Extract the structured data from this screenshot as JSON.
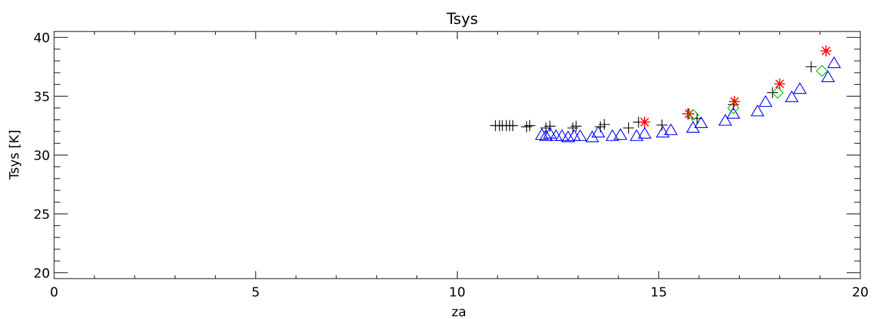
{
  "chart_data": {
    "type": "scatter",
    "title": "Tsys",
    "xlabel": "za",
    "ylabel": "Tsys [K]",
    "xlim": [
      0,
      20
    ],
    "ylim": [
      19.5,
      40.5
    ],
    "xticks": [
      0,
      5,
      10,
      15,
      20
    ],
    "yticks": [
      20,
      25,
      30,
      35,
      40
    ],
    "xtick_labels": [
      "0",
      "5",
      "10",
      "15",
      "20"
    ],
    "ytick_labels": [
      "20",
      "25",
      "30",
      "35",
      "40"
    ],
    "grid": false,
    "series": [
      {
        "marker": "plus",
        "color": "#000000",
        "points": [
          [
            10.95,
            32.5
          ],
          [
            11.05,
            32.5
          ],
          [
            11.12,
            32.5
          ],
          [
            11.22,
            32.5
          ],
          [
            11.3,
            32.5
          ],
          [
            11.38,
            32.5
          ],
          [
            11.72,
            32.4
          ],
          [
            11.8,
            32.5
          ],
          [
            12.2,
            32.3
          ],
          [
            12.3,
            32.45
          ],
          [
            12.87,
            32.3
          ],
          [
            12.95,
            32.45
          ],
          [
            13.55,
            32.4
          ],
          [
            13.65,
            32.6
          ],
          [
            14.25,
            32.3
          ],
          [
            14.5,
            32.8
          ],
          [
            15.08,
            32.55
          ],
          [
            15.72,
            33.5
          ],
          [
            15.95,
            33.1
          ],
          [
            16.85,
            34.3
          ],
          [
            17.82,
            35.3
          ],
          [
            18.78,
            37.5
          ]
        ]
      },
      {
        "marker": "triangle",
        "color": "#0000ff",
        "points": [
          [
            12.1,
            31.7
          ],
          [
            12.2,
            31.6
          ],
          [
            12.3,
            31.8
          ],
          [
            12.45,
            31.6
          ],
          [
            12.6,
            31.6
          ],
          [
            12.75,
            31.5
          ],
          [
            12.9,
            31.6
          ],
          [
            13.05,
            31.6
          ],
          [
            13.35,
            31.5
          ],
          [
            13.5,
            31.9
          ],
          [
            13.85,
            31.6
          ],
          [
            14.05,
            31.7
          ],
          [
            14.45,
            31.6
          ],
          [
            14.65,
            31.8
          ],
          [
            15.1,
            31.9
          ],
          [
            15.3,
            32.1
          ],
          [
            15.85,
            32.3
          ],
          [
            16.05,
            32.7
          ],
          [
            16.65,
            32.9
          ],
          [
            16.85,
            33.5
          ],
          [
            17.45,
            33.7
          ],
          [
            17.65,
            34.5
          ],
          [
            18.3,
            34.9
          ],
          [
            18.5,
            35.6
          ],
          [
            19.2,
            36.6
          ],
          [
            19.35,
            37.8
          ]
        ]
      },
      {
        "marker": "asterisk",
        "color": "#ff0000",
        "points": [
          [
            14.65,
            32.8
          ],
          [
            15.75,
            33.5
          ],
          [
            16.88,
            34.55
          ],
          [
            18.0,
            36.05
          ],
          [
            19.15,
            38.85
          ]
        ]
      },
      {
        "marker": "diamond",
        "color": "#00bb00",
        "points": [
          [
            15.85,
            33.4
          ],
          [
            16.85,
            34.0
          ],
          [
            17.95,
            35.3
          ],
          [
            19.05,
            37.15
          ]
        ]
      }
    ]
  }
}
